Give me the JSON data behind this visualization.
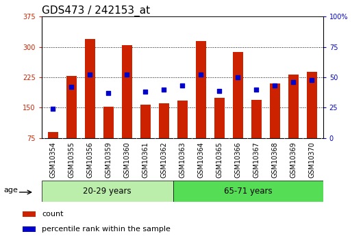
{
  "title": "GDS473 / 242153_at",
  "samples": [
    "GSM10354",
    "GSM10355",
    "GSM10356",
    "GSM10359",
    "GSM10360",
    "GSM10361",
    "GSM10362",
    "GSM10363",
    "GSM10364",
    "GSM10365",
    "GSM10366",
    "GSM10367",
    "GSM10368",
    "GSM10369",
    "GSM10370"
  ],
  "counts": [
    90,
    228,
    320,
    153,
    305,
    158,
    160,
    168,
    314,
    175,
    288,
    170,
    210,
    232,
    238
  ],
  "percentiles": [
    24,
    42,
    52,
    37,
    52,
    38,
    40,
    43,
    52,
    39,
    50,
    40,
    43,
    46,
    48
  ],
  "group1_label": "20-29 years",
  "group2_label": "65-71 years",
  "group1_count": 7,
  "group2_count": 8,
  "bar_color": "#cc2200",
  "pct_color": "#0000cc",
  "ylim_left": [
    75,
    375
  ],
  "ylim_right": [
    0,
    100
  ],
  "yticks_left": [
    75,
    150,
    225,
    300,
    375
  ],
  "yticks_right": [
    0,
    25,
    50,
    75,
    100
  ],
  "age_label": "age",
  "legend_count": "count",
  "legend_pct": "percentile rank within the sample",
  "group1_bg": "#bbeeaa",
  "group2_bg": "#55dd55",
  "xtick_bg": "#cccccc",
  "title_fontsize": 11,
  "tick_fontsize": 7,
  "bar_width": 0.55
}
